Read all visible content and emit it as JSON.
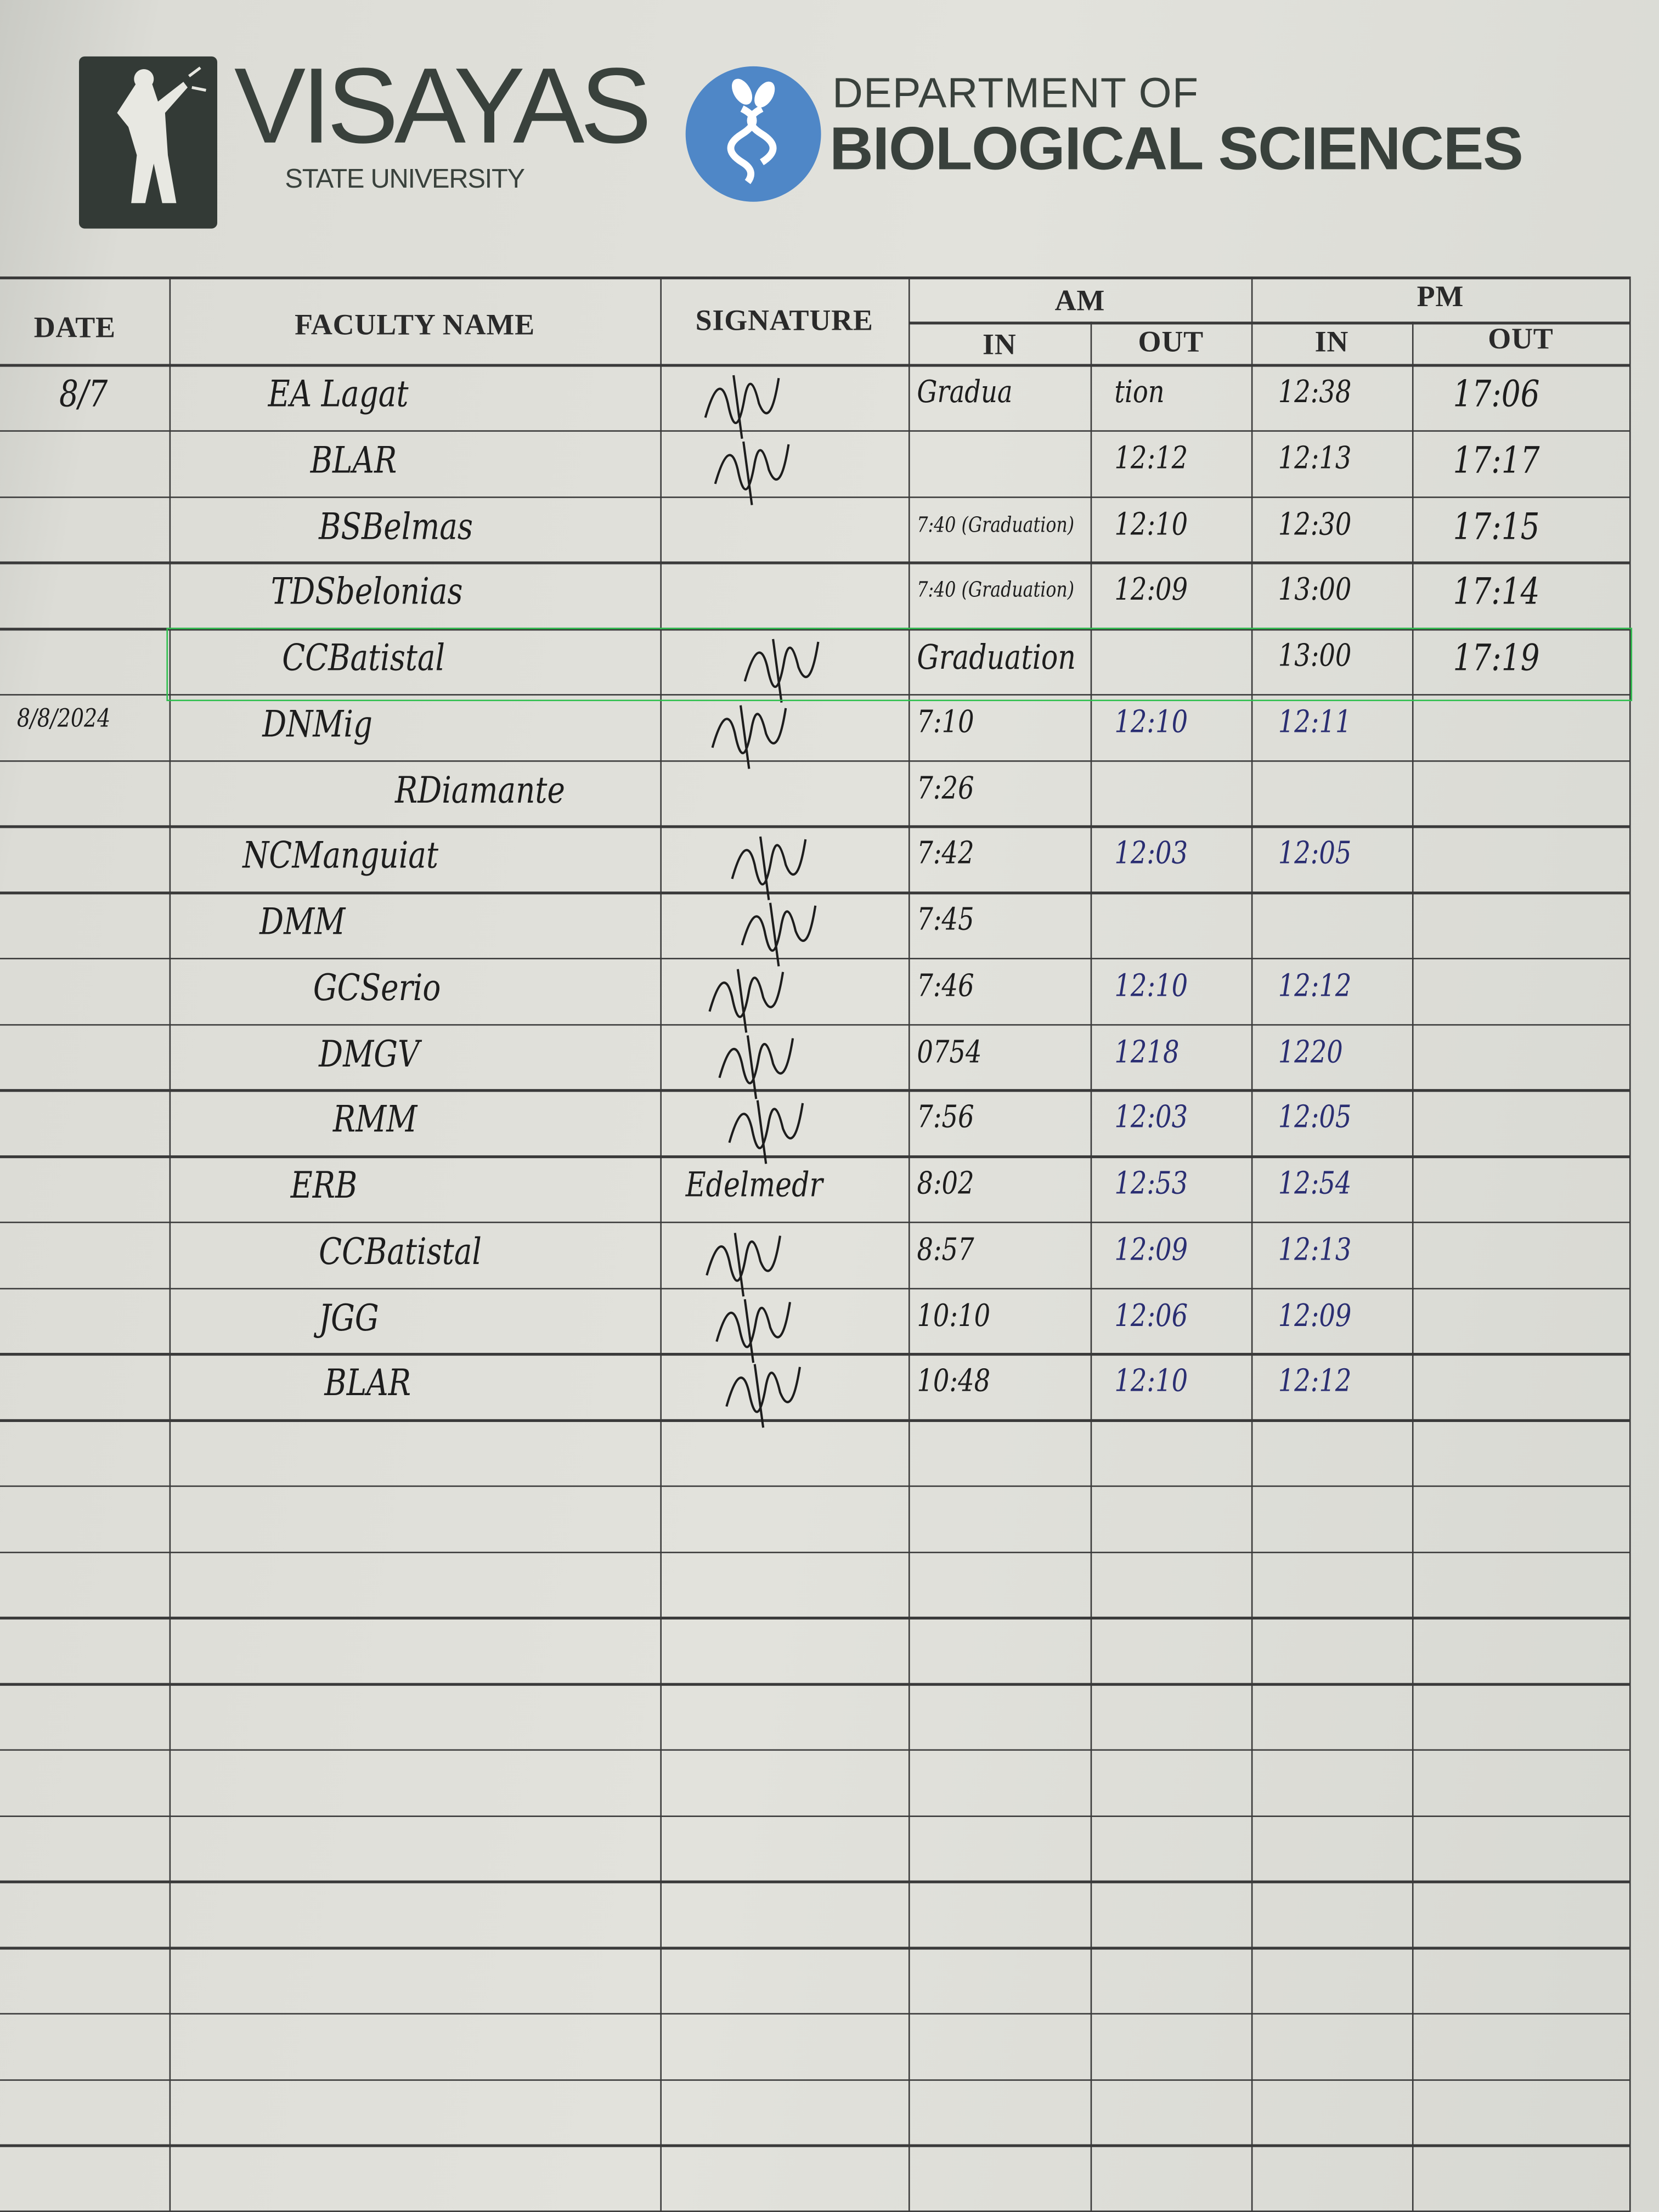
{
  "header": {
    "university_logo_text": "VISAYAS",
    "university_sub": "STATE UNIVERSITY",
    "department_top": "DEPARTMENT OF",
    "department_main": "BIOLOGICAL SCIENCES"
  },
  "table": {
    "columns": {
      "date": "DATE",
      "faculty_name": "FACULTY NAME",
      "signature": "SIGNATURE",
      "am": "AM",
      "pm": "PM",
      "am_in": "IN",
      "am_out": "OUT",
      "pm_in": "IN",
      "pm_out": "OUT"
    },
    "highlight_color": "#2fbf4f",
    "ink_colors": {
      "black": "#1d1d1d",
      "blue": "#2a2e72"
    },
    "entries": [
      {
        "date": "8/7",
        "name": "EA Lagat",
        "am_in": "Gradua",
        "am_out": "tion",
        "pm_in": "12:38",
        "pm_out": "17:06"
      },
      {
        "date": "",
        "name": "BLAR",
        "am_in": "",
        "am_out": "12:12",
        "pm_in": "12:13",
        "pm_out": "17:17"
      },
      {
        "date": "",
        "name": "BSBelmas",
        "am_in": "7:40 (Graduation)",
        "am_out": "12:10",
        "pm_in": "12:30",
        "pm_out": "17:15"
      },
      {
        "date": "",
        "name": "TDSbelonias",
        "am_in": "7:40 (Graduation)",
        "am_out": "12:09",
        "pm_in": "13:00",
        "pm_out": "17:14"
      },
      {
        "date": "",
        "name": "CCBatistal",
        "am_in": "Graduation",
        "am_out": "",
        "pm_in": "13:00",
        "pm_out": "17:19"
      },
      {
        "date": "8/8/2024",
        "name": "DNMig",
        "am_in": "7:10",
        "am_out": "12:10",
        "pm_in": "12:11",
        "pm_out": ""
      },
      {
        "date": "",
        "name": "RDiamante",
        "am_in": "7:26",
        "am_out": "",
        "pm_in": "",
        "pm_out": ""
      },
      {
        "date": "",
        "name": "NCManguiat",
        "am_in": "7:42",
        "am_out": "12:03",
        "pm_in": "12:05",
        "pm_out": ""
      },
      {
        "date": "",
        "name": "DMM",
        "am_in": "7:45",
        "am_out": "",
        "pm_in": "",
        "pm_out": ""
      },
      {
        "date": "",
        "name": "GCSerio",
        "am_in": "7:46",
        "am_out": "12:10",
        "pm_in": "12:12",
        "pm_out": ""
      },
      {
        "date": "",
        "name": "DMGV",
        "am_in": "0754",
        "am_out": "1218",
        "pm_in": "1220",
        "pm_out": ""
      },
      {
        "date": "",
        "name": "RMM",
        "am_in": "7:56",
        "am_out": "12:03",
        "pm_in": "12:05",
        "pm_out": ""
      },
      {
        "date": "",
        "name": "ERB",
        "signature": "Edelmedr",
        "am_in": "8:02",
        "am_out": "12:53",
        "pm_in": "12:54",
        "pm_out": ""
      },
      {
        "date": "",
        "name": "CCBatistal",
        "am_in": "8:57",
        "am_out": "12:09",
        "pm_in": "12:13",
        "pm_out": ""
      },
      {
        "date": "",
        "name": "JGG",
        "am_in": "10:10",
        "am_out": "12:06",
        "pm_in": "12:09",
        "pm_out": ""
      },
      {
        "date": "",
        "name": "BLAR",
        "am_in": "10:48",
        "am_out": "12:10",
        "pm_in": "12:12",
        "pm_out": ""
      }
    ]
  }
}
